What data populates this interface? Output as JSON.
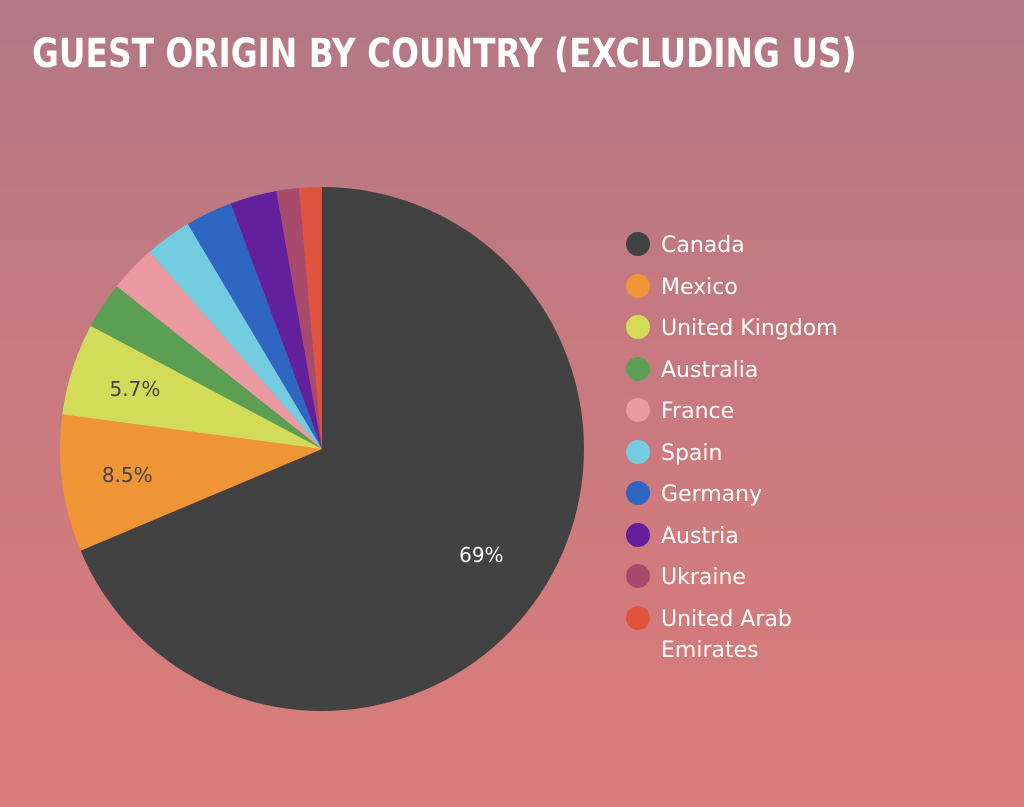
{
  "chart_data": {
    "type": "pie",
    "title": "GUEST ORIGIN BY COUNTRY (EXCLUDING US)",
    "legend_position": "right",
    "slices": [
      {
        "label": "Canada",
        "value": 69,
        "color": "#424242",
        "data_label": "69%"
      },
      {
        "label": "Mexico",
        "value": 8.5,
        "color": "#ef9536",
        "data_label": "8.5%"
      },
      {
        "label": "United Kingdom",
        "value": 5.7,
        "color": "#d3dc59",
        "data_label": "5.7%"
      },
      {
        "label": "Australia",
        "value": 2.9,
        "color": "#5b9f54",
        "data_label": ""
      },
      {
        "label": "France",
        "value": 2.9,
        "color": "#ec9aa2",
        "data_label": ""
      },
      {
        "label": "Spain",
        "value": 2.9,
        "color": "#73cce0",
        "data_label": ""
      },
      {
        "label": "Germany",
        "value": 2.9,
        "color": "#2e66c2",
        "data_label": ""
      },
      {
        "label": "Austria",
        "value": 2.9,
        "color": "#63209c",
        "data_label": ""
      },
      {
        "label": "Ukraine",
        "value": 1.4,
        "color": "#a84a6c",
        "data_label": ""
      },
      {
        "label": "United Arab Emirates",
        "value": 1.4,
        "color": "#e0533f",
        "data_label": ""
      }
    ]
  }
}
